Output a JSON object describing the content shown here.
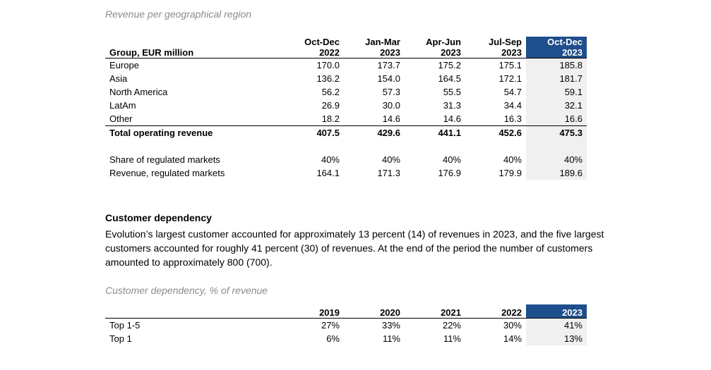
{
  "revenue_region": {
    "caption": "Revenue per geographical region",
    "header_label": "Group, EUR million",
    "columns": [
      {
        "line1": "Oct-Dec",
        "line2": "2022"
      },
      {
        "line1": "Jan-Mar",
        "line2": "2023"
      },
      {
        "line1": "Apr-Jun",
        "line2": "2023"
      },
      {
        "line1": "Jul-Sep",
        "line2": "2023"
      },
      {
        "line1": "Oct-Dec",
        "line2": "2023"
      }
    ],
    "rows": [
      {
        "label": "Europe",
        "values": [
          "170.0",
          "173.7",
          "175.2",
          "175.1",
          "185.8"
        ]
      },
      {
        "label": "Asia",
        "values": [
          "136.2",
          "154.0",
          "164.5",
          "172.1",
          "181.7"
        ]
      },
      {
        "label": "North America",
        "values": [
          "56.2",
          "57.3",
          "55.5",
          "54.7",
          "59.1"
        ]
      },
      {
        "label": "LatAm",
        "values": [
          "26.9",
          "30.0",
          "31.3",
          "34.4",
          "32.1"
        ]
      },
      {
        "label": "Other",
        "values": [
          "18.2",
          "14.6",
          "14.6",
          "16.3",
          "16.6"
        ]
      }
    ],
    "total": {
      "label": "Total operating revenue",
      "values": [
        "407.5",
        "429.6",
        "441.1",
        "452.6",
        "475.3"
      ]
    },
    "extra_rows": [
      {
        "label": "Share of regulated markets",
        "values": [
          "40%",
          "40%",
          "40%",
          "40%",
          "40%"
        ]
      },
      {
        "label": "Revenue, regulated markets",
        "values": [
          "164.1",
          "171.3",
          "176.9",
          "179.9",
          "189.6"
        ]
      }
    ]
  },
  "customer_section": {
    "title": "Customer dependency",
    "paragraph": "Evolution’s largest customer accounted for approximately 13 percent (14) of revenues in 2023, and the five largest customers accounted for roughly 41 percent (30) of revenues. At the end of the period the number of customers amounted to approximately 800 (700)."
  },
  "customer_dependency": {
    "caption": "Customer dependency, % of revenue",
    "columns": [
      "2019",
      "2020",
      "2021",
      "2022",
      "2023"
    ],
    "rows": [
      {
        "label": "Top 1-5",
        "values": [
          "27%",
          "33%",
          "22%",
          "30%",
          "41%"
        ]
      },
      {
        "label": "Top 1",
        "values": [
          "6%",
          "11%",
          "11%",
          "14%",
          "13%"
        ]
      }
    ]
  },
  "colors": {
    "highlight_header": "#1f4e8c",
    "highlight_cell": "#f0f0f0",
    "caption_text": "#8c8c8c"
  }
}
